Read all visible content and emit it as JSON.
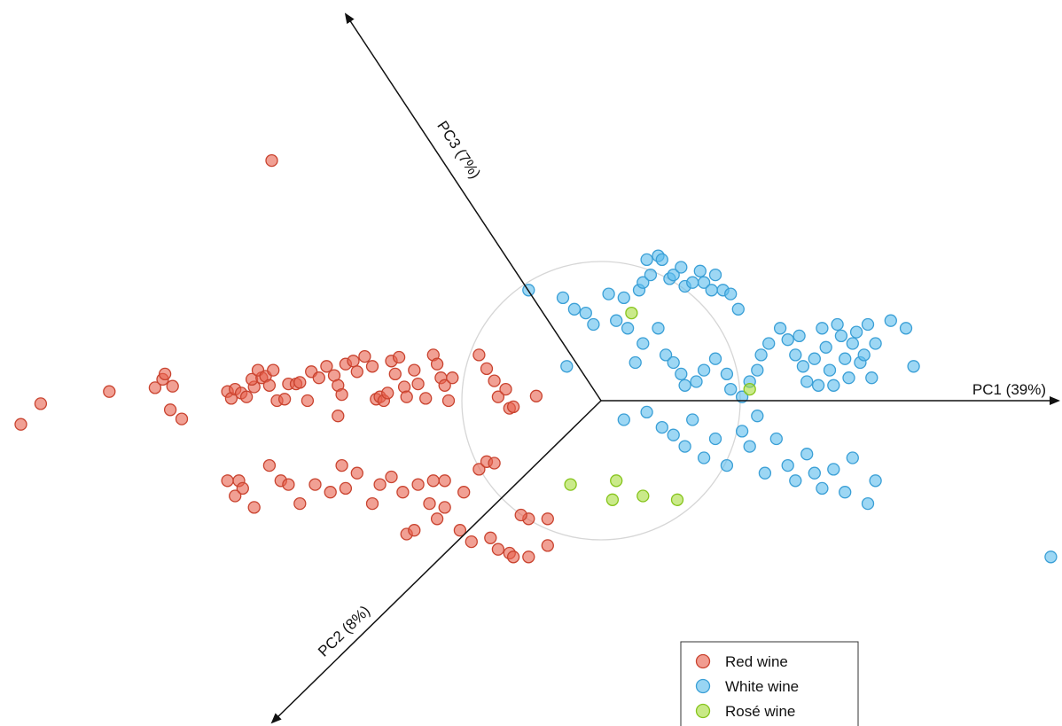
{
  "chart_data": {
    "type": "scatter",
    "subtype": "pca-biplot-3d",
    "axes": {
      "pc1": {
        "label": "PC1 (39%)"
      },
      "pc2": {
        "label": "PC2 (8%)"
      },
      "pc3": {
        "label": "PC3 (7%)"
      }
    },
    "reference_circle": true,
    "legend_position": "bottom-right",
    "series": [
      {
        "name": "Red wine",
        "color": "#e8604c",
        "points": [
          [
            -7.61,
            -0.31
          ],
          [
            -7.35,
            -0.04
          ],
          [
            -6.45,
            0.12
          ],
          [
            -5.85,
            0.17
          ],
          [
            -5.75,
            0.28
          ],
          [
            -5.62,
            0.19
          ],
          [
            -5.72,
            0.35
          ],
          [
            -5.65,
            -0.12
          ],
          [
            -5.5,
            -0.24
          ],
          [
            -4.9,
            0.12
          ],
          [
            -4.85,
            0.03
          ],
          [
            -4.8,
            0.15
          ],
          [
            -4.72,
            0.1
          ],
          [
            -4.65,
            0.05
          ],
          [
            -4.55,
            0.18
          ],
          [
            -4.58,
            0.28
          ],
          [
            -4.45,
            0.3
          ],
          [
            -4.5,
            0.4
          ],
          [
            -4.4,
            0.32
          ],
          [
            -4.3,
            0.4
          ],
          [
            -4.35,
            0.2
          ],
          [
            -4.25,
            0.0
          ],
          [
            -4.15,
            0.02
          ],
          [
            -4.1,
            0.22
          ],
          [
            -4.0,
            0.22
          ],
          [
            -3.95,
            0.24
          ],
          [
            -3.85,
            0.0
          ],
          [
            -3.8,
            0.38
          ],
          [
            -3.7,
            0.3
          ],
          [
            -3.6,
            0.45
          ],
          [
            -3.5,
            0.33
          ],
          [
            -3.45,
            0.2
          ],
          [
            -3.4,
            0.08
          ],
          [
            -3.45,
            -0.2
          ],
          [
            -3.35,
            0.48
          ],
          [
            -3.25,
            0.52
          ],
          [
            -3.2,
            0.38
          ],
          [
            -3.1,
            0.58
          ],
          [
            -3.0,
            0.45
          ],
          [
            -2.95,
            0.02
          ],
          [
            -2.9,
            0.05
          ],
          [
            -2.85,
            0.0
          ],
          [
            -2.8,
            0.1
          ],
          [
            -2.75,
            0.52
          ],
          [
            -2.7,
            0.35
          ],
          [
            -2.65,
            0.57
          ],
          [
            -2.58,
            0.18
          ],
          [
            -2.55,
            0.05
          ],
          [
            -2.45,
            0.4
          ],
          [
            -2.4,
            0.22
          ],
          [
            -2.3,
            0.03
          ],
          [
            -2.2,
            0.6
          ],
          [
            -2.15,
            0.48
          ],
          [
            -2.1,
            0.3
          ],
          [
            -2.05,
            0.2
          ],
          [
            -2.0,
            0.0
          ],
          [
            -1.95,
            0.3
          ],
          [
            -1.6,
            0.6
          ],
          [
            -1.5,
            0.42
          ],
          [
            -1.4,
            0.26
          ],
          [
            -1.35,
            0.05
          ],
          [
            -1.25,
            0.15
          ],
          [
            -1.2,
            -0.1
          ],
          [
            -1.15,
            -0.08
          ],
          [
            -0.85,
            0.06
          ],
          [
            -4.9,
            -1.05
          ],
          [
            -4.75,
            -1.05
          ],
          [
            -4.7,
            -1.15
          ],
          [
            -4.8,
            -1.25
          ],
          [
            -4.55,
            -1.4
          ],
          [
            -4.35,
            -0.85
          ],
          [
            -4.2,
            -1.05
          ],
          [
            -4.1,
            -1.1
          ],
          [
            -3.95,
            -1.35
          ],
          [
            -3.75,
            -1.1
          ],
          [
            -3.55,
            -1.2
          ],
          [
            -3.4,
            -0.85
          ],
          [
            -3.35,
            -1.15
          ],
          [
            -3.2,
            -0.95
          ],
          [
            -3.0,
            -1.35
          ],
          [
            -2.9,
            -1.1
          ],
          [
            -2.75,
            -1.0
          ],
          [
            -2.6,
            -1.2
          ],
          [
            -2.4,
            -1.1
          ],
          [
            -2.2,
            -1.05
          ],
          [
            -2.05,
            -1.05
          ],
          [
            -1.8,
            -1.2
          ],
          [
            -1.6,
            -0.9
          ],
          [
            -1.5,
            -0.8
          ],
          [
            -1.4,
            -0.82
          ],
          [
            -2.55,
            -1.75
          ],
          [
            -2.45,
            -1.7
          ],
          [
            -2.25,
            -1.35
          ],
          [
            -2.15,
            -1.55
          ],
          [
            -2.05,
            -1.4
          ],
          [
            -1.85,
            -1.7
          ],
          [
            -1.7,
            -1.85
          ],
          [
            -1.45,
            -1.8
          ],
          [
            -1.35,
            -1.95
          ],
          [
            -1.2,
            -2.0
          ],
          [
            -1.15,
            -2.05
          ],
          [
            -0.95,
            -2.05
          ],
          [
            -0.95,
            -1.55
          ],
          [
            -1.05,
            -1.5
          ],
          [
            -0.7,
            -1.9
          ],
          [
            -0.7,
            -1.55
          ]
        ],
        "pc3_points": [
          [
            -4.32,
            3.15
          ]
        ]
      },
      {
        "name": "White wine",
        "color": "#5bbcec",
        "points": [
          [
            -0.95,
            1.45
          ],
          [
            -0.5,
            1.35
          ],
          [
            -0.35,
            1.2
          ],
          [
            -0.2,
            1.15
          ],
          [
            -0.1,
            1.0
          ],
          [
            0.1,
            1.4
          ],
          [
            0.2,
            1.05
          ],
          [
            0.3,
            1.35
          ],
          [
            0.35,
            0.95
          ],
          [
            0.5,
            1.45
          ],
          [
            0.55,
            1.55
          ],
          [
            0.6,
            1.85
          ],
          [
            0.65,
            1.65
          ],
          [
            0.75,
            1.9
          ],
          [
            0.8,
            1.85
          ],
          [
            0.9,
            1.6
          ],
          [
            0.95,
            1.65
          ],
          [
            1.05,
            1.75
          ],
          [
            1.1,
            1.5
          ],
          [
            1.2,
            1.55
          ],
          [
            1.3,
            1.7
          ],
          [
            1.35,
            1.55
          ],
          [
            1.45,
            1.45
          ],
          [
            1.5,
            1.65
          ],
          [
            1.6,
            1.45
          ],
          [
            1.7,
            1.4
          ],
          [
            1.8,
            1.2
          ],
          [
            -0.45,
            0.45
          ],
          [
            0.45,
            0.5
          ],
          [
            0.55,
            0.75
          ],
          [
            0.75,
            0.95
          ],
          [
            0.85,
            0.6
          ],
          [
            0.95,
            0.5
          ],
          [
            1.05,
            0.35
          ],
          [
            1.1,
            0.2
          ],
          [
            1.25,
            0.25
          ],
          [
            1.35,
            0.4
          ],
          [
            1.5,
            0.55
          ],
          [
            1.65,
            0.35
          ],
          [
            1.7,
            0.15
          ],
          [
            1.85,
            0.05
          ],
          [
            1.95,
            0.25
          ],
          [
            2.05,
            0.4
          ],
          [
            2.1,
            0.6
          ],
          [
            2.2,
            0.75
          ],
          [
            2.35,
            0.95
          ],
          [
            2.45,
            0.8
          ],
          [
            2.55,
            0.6
          ],
          [
            2.6,
            0.85
          ],
          [
            2.65,
            0.45
          ],
          [
            2.7,
            0.25
          ],
          [
            2.8,
            0.55
          ],
          [
            2.85,
            0.2
          ],
          [
            2.9,
            0.95
          ],
          [
            2.95,
            0.7
          ],
          [
            3.0,
            0.4
          ],
          [
            3.05,
            0.2
          ],
          [
            3.1,
            1.0
          ],
          [
            3.15,
            0.85
          ],
          [
            3.2,
            0.55
          ],
          [
            3.25,
            0.3
          ],
          [
            3.3,
            0.75
          ],
          [
            3.35,
            0.9
          ],
          [
            3.4,
            0.5
          ],
          [
            3.45,
            0.6
          ],
          [
            3.5,
            1.0
          ],
          [
            3.55,
            0.3
          ],
          [
            3.6,
            0.75
          ],
          [
            3.8,
            1.05
          ],
          [
            4.0,
            0.95
          ],
          [
            4.1,
            0.45
          ],
          [
            0.3,
            -0.25
          ],
          [
            0.6,
            -0.15
          ],
          [
            0.8,
            -0.35
          ],
          [
            0.95,
            -0.45
          ],
          [
            1.1,
            -0.6
          ],
          [
            1.2,
            -0.25
          ],
          [
            1.35,
            -0.75
          ],
          [
            1.5,
            -0.5
          ],
          [
            1.65,
            -0.85
          ],
          [
            1.85,
            -0.4
          ],
          [
            1.95,
            -0.6
          ],
          [
            2.05,
            -0.2
          ],
          [
            2.15,
            -0.95
          ],
          [
            2.3,
            -0.5
          ],
          [
            2.45,
            -0.85
          ],
          [
            2.55,
            -1.05
          ],
          [
            2.7,
            -0.7
          ],
          [
            2.8,
            -0.95
          ],
          [
            2.9,
            -1.15
          ],
          [
            3.05,
            -0.9
          ],
          [
            3.2,
            -1.2
          ],
          [
            3.3,
            -0.75
          ],
          [
            3.5,
            -1.35
          ],
          [
            3.6,
            -1.05
          ],
          [
            7.3,
            0.0
          ],
          [
            7.4,
            -0.1
          ],
          [
            7.6,
            0.05
          ],
          [
            7.7,
            -0.15
          ],
          [
            7.85,
            -0.1
          ],
          [
            8.2,
            -0.05
          ],
          [
            7.8,
            -0.55
          ],
          [
            5.9,
            -2.05
          ],
          [
            6.2,
            -2.05
          ],
          [
            6.3,
            -2.25
          ],
          [
            6.5,
            -2.3
          ],
          [
            6.8,
            -2.1
          ],
          [
            6.9,
            -2.05
          ],
          [
            7.2,
            -2.3
          ],
          [
            6.65,
            -2.6
          ],
          [
            6.8,
            -2.55
          ],
          [
            7.5,
            -2.45
          ],
          [
            7.65,
            -2.45
          ],
          [
            7.8,
            -2.75
          ],
          [
            8.4,
            -2.35
          ],
          [
            8.75,
            -2.15
          ],
          [
            9.0,
            -2.2
          ],
          [
            9.25,
            -2.3
          ],
          [
            9.2,
            -2.45
          ]
        ]
      },
      {
        "name": "Rosé wine",
        "color": "#a6dc3c",
        "points": [
          [
            0.4,
            1.15
          ],
          [
            1.95,
            0.15
          ],
          [
            -0.4,
            -1.1
          ],
          [
            0.2,
            -1.05
          ],
          [
            0.15,
            -1.3
          ],
          [
            0.55,
            -1.25
          ],
          [
            1.0,
            -1.3
          ]
        ],
        "pc3_points": [
          [
            0.4,
            8.28
          ],
          [
            0.85,
            8.1
          ],
          [
            1.0,
            7.95
          ],
          [
            1.25,
            7.9
          ],
          [
            0.75,
            7.85
          ],
          [
            1.75,
            7.9
          ]
        ]
      }
    ]
  }
}
